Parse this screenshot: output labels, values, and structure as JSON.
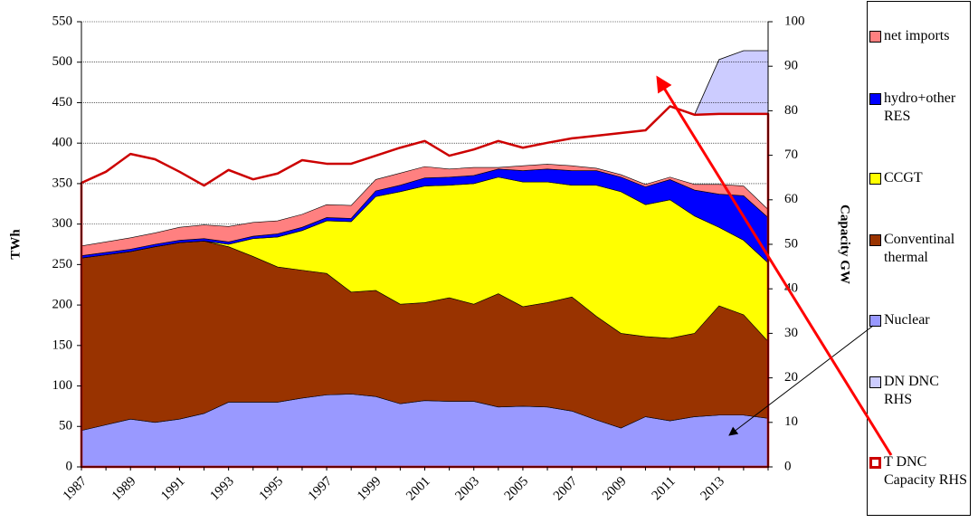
{
  "chart_data": {
    "type": "area",
    "stacked": true,
    "grid": true,
    "legend": "right",
    "ylabel": "TWh",
    "y2label": "Capacity GW",
    "categories": [
      "1987",
      null,
      "1989",
      null,
      "1991",
      null,
      "1993",
      null,
      "1995",
      null,
      "1997",
      null,
      "1999",
      null,
      "2001",
      null,
      "2003",
      null,
      "2005",
      null,
      "2007",
      null,
      "2009",
      null,
      "2011",
      null,
      "2013",
      null,
      null
    ],
    "ylim": [
      0,
      550
    ],
    "yticks": [
      0,
      50,
      100,
      150,
      200,
      250,
      300,
      350,
      400,
      450,
      500,
      550
    ],
    "y2lim": [
      0,
      100
    ],
    "y2ticks": [
      0,
      10,
      20,
      30,
      40,
      50,
      60,
      70,
      80,
      90,
      100
    ],
    "series": [
      {
        "name": "net imports",
        "color": "#ff8080",
        "values": [
          12,
          13,
          14,
          14,
          16,
          17,
          19,
          17,
          16,
          16,
          16,
          16,
          14,
          15,
          14,
          10,
          10,
          2,
          6,
          6,
          6,
          3,
          3,
          3,
          3,
          7,
          12,
          12,
          10
        ]
      },
      {
        "name": "hydro+other RES",
        "color": "#0000ff",
        "values": [
          3,
          3,
          3,
          3,
          3,
          3,
          3,
          3,
          4,
          4,
          4,
          4,
          7,
          8,
          10,
          10,
          10,
          10,
          14,
          16,
          18,
          18,
          18,
          22,
          25,
          32,
          41,
          55,
          56
        ]
      },
      {
        "name": "CCGT",
        "color": "#ffff00",
        "values": [
          0,
          0,
          0,
          0,
          0,
          0,
          3,
          22,
          37,
          49,
          65,
          87,
          116,
          139,
          144,
          139,
          149,
          144,
          154,
          149,
          138,
          162,
          175,
          163,
          171,
          145,
          97,
          92,
          97
        ]
      },
      {
        "name": "Conventinal thermal",
        "color": "#993300",
        "values": [
          213,
          210,
          207,
          217,
          218,
          213,
          192,
          180,
          167,
          158,
          150,
          126,
          131,
          123,
          121,
          128,
          120,
          140,
          123,
          129,
          141,
          128,
          117,
          99,
          102,
          103,
          135,
          124,
          95
        ]
      },
      {
        "name": "Nuclear",
        "color": "#9999ff",
        "values": [
          45,
          52,
          59,
          55,
          59,
          66,
          80,
          80,
          80,
          85,
          89,
          90,
          87,
          78,
          82,
          81,
          81,
          74,
          75,
          74,
          69,
          58,
          48,
          62,
          57,
          62,
          64,
          64,
          60
        ]
      },
      {
        "name": "DN DNC RHS",
        "color": "#ccccff",
        "axis": "y2",
        "values": [
          null,
          null,
          null,
          null,
          null,
          null,
          null,
          null,
          null,
          null,
          null,
          null,
          null,
          null,
          null,
          null,
          null,
          null,
          null,
          null,
          null,
          null,
          null,
          null,
          null,
          79.1,
          91.5,
          93.5,
          93.5
        ]
      },
      {
        "name": "T DNC Capacity RHS",
        "color": "#cc0000",
        "axis": "y2",
        "fill": "none",
        "values": [
          63.8,
          66.3,
          70.3,
          69.1,
          66.3,
          63.2,
          66.7,
          64.6,
          65.9,
          68.9,
          68.1,
          68.1,
          69.9,
          71.7,
          73.2,
          69.9,
          71.3,
          73.2,
          71.7,
          72.8,
          73.8,
          74.4,
          75.0,
          75.6,
          81.0,
          79.1,
          79.3,
          79.3,
          79.3
        ]
      }
    ]
  }
}
